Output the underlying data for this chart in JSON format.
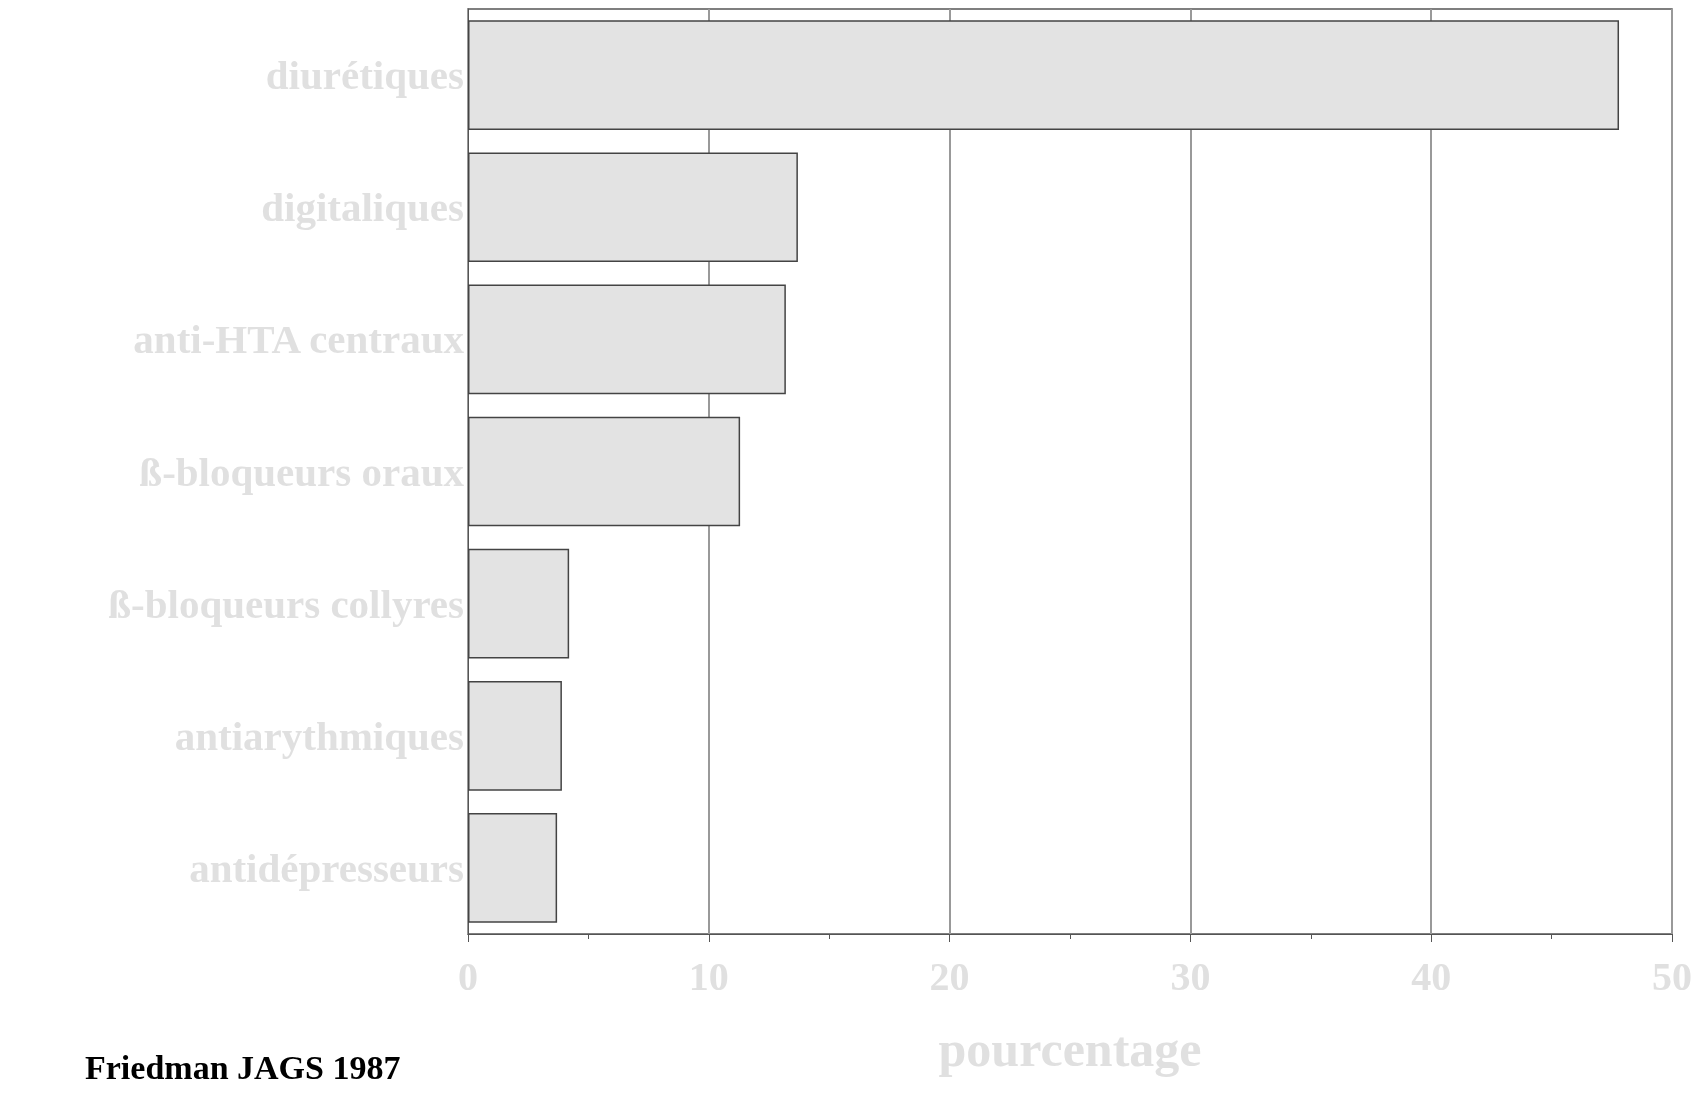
{
  "chart_data": {
    "type": "bar",
    "orientation": "horizontal",
    "categories": [
      "diurétiques",
      "digitaliques",
      "anti-HTA centraux",
      "ß-bloqueurs oraux",
      "ß-bloqueurs collyres",
      "antiarythmiques",
      "antidépresseurs"
    ],
    "values": [
      47.8,
      13.7,
      13.2,
      11.3,
      4.2,
      3.9,
      3.7
    ],
    "color": "#e3e3e3",
    "xlim": [
      0,
      50
    ],
    "xticks": [
      0,
      10,
      20,
      30,
      40,
      50
    ],
    "xlabel": "pourcentage",
    "grid": "x",
    "annotations": [
      "Friedman JAGS 1987"
    ]
  }
}
